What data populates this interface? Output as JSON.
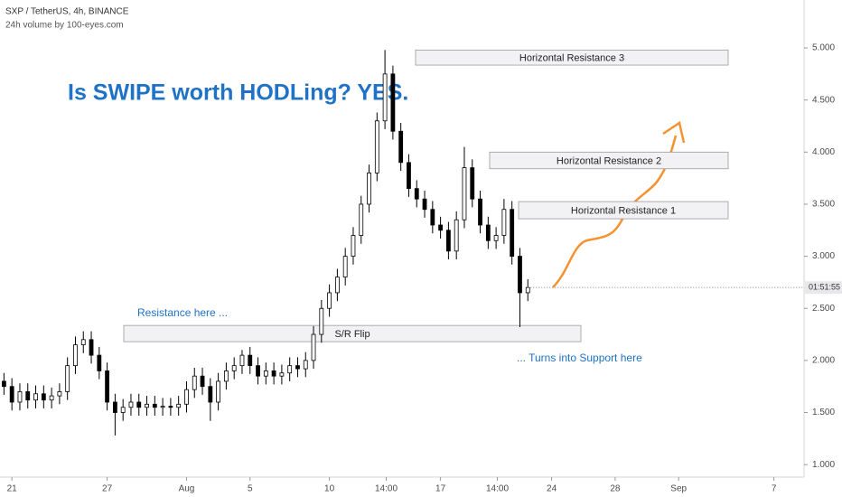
{
  "chart_data": {
    "type": "candlestick",
    "title": "SXP / TetherUS, 4h, BINANCE",
    "subtitle": "24h volume by 100-eyes.com",
    "headline": "Is SWIPE worth HODLing? YES.",
    "countdown": "01:51:55",
    "x": [
      -0.5,
      0,
      0.5,
      1,
      1.5,
      2,
      2.5,
      3,
      3.5,
      4,
      4.5,
      5,
      5.5,
      6,
      6.5,
      7,
      7.5,
      8,
      8.5,
      9,
      9.5,
      10,
      10.5,
      11,
      11.5,
      12,
      12.5,
      13,
      13.5,
      14,
      14.5,
      15,
      15.5,
      16,
      16.5,
      17,
      17.5,
      18,
      18.5,
      19,
      19.5,
      20,
      20.5,
      21,
      21.5,
      22,
      22.5,
      23,
      23.5,
      24,
      24.5,
      25,
      25.5,
      26,
      26.5,
      27,
      27.5,
      28,
      28.5,
      29,
      29.5,
      30,
      30.5,
      31,
      31.5,
      32,
      32.5
    ],
    "open": [
      1.8,
      1.75,
      1.6,
      1.7,
      1.62,
      1.68,
      1.62,
      1.66,
      1.7,
      1.95,
      2.15,
      2.2,
      2.05,
      1.9,
      1.6,
      1.5,
      1.55,
      1.6,
      1.55,
      1.58,
      1.55,
      1.56,
      1.55,
      1.58,
      1.72,
      1.85,
      1.75,
      1.6,
      1.8,
      1.9,
      1.95,
      2.05,
      1.95,
      1.85,
      1.9,
      1.85,
      1.88,
      1.95,
      1.92,
      2.0,
      2.25,
      2.5,
      2.65,
      2.8,
      3.0,
      3.2,
      3.5,
      3.8,
      4.3,
      4.75,
      4.2,
      3.9,
      3.65,
      3.55,
      3.45,
      3.3,
      3.25,
      3.05,
      3.35,
      3.85,
      3.55,
      3.3,
      3.15,
      3.2,
      3.45,
      3.0,
      2.65
    ],
    "high": [
      1.88,
      1.83,
      1.78,
      1.78,
      1.76,
      1.76,
      1.74,
      1.78,
      2.03,
      2.23,
      2.28,
      2.28,
      2.13,
      1.98,
      1.68,
      1.63,
      1.68,
      1.68,
      1.66,
      1.66,
      1.64,
      1.64,
      1.66,
      1.8,
      1.93,
      1.93,
      1.83,
      1.88,
      1.98,
      2.03,
      2.1,
      2.13,
      2.03,
      1.98,
      1.98,
      1.96,
      2.03,
      2.03,
      2.08,
      2.33,
      2.58,
      2.73,
      2.88,
      3.08,
      3.28,
      3.58,
      3.88,
      4.38,
      4.98,
      4.83,
      4.28,
      3.98,
      3.73,
      3.63,
      3.53,
      3.38,
      3.33,
      3.43,
      4.05,
      3.93,
      3.63,
      3.38,
      3.28,
      3.55,
      3.53,
      3.08,
      2.78
    ],
    "low": [
      1.67,
      1.52,
      1.52,
      1.54,
      1.54,
      1.54,
      1.54,
      1.58,
      1.62,
      1.87,
      2.07,
      1.97,
      1.82,
      1.52,
      1.28,
      1.42,
      1.47,
      1.47,
      1.47,
      1.47,
      1.47,
      1.47,
      1.47,
      1.5,
      1.64,
      1.67,
      1.42,
      1.52,
      1.72,
      1.82,
      1.87,
      1.87,
      1.77,
      1.77,
      1.77,
      1.77,
      1.8,
      1.84,
      1.84,
      1.92,
      2.17,
      2.42,
      2.57,
      2.72,
      2.92,
      3.12,
      3.42,
      3.72,
      4.22,
      4.12,
      3.82,
      3.57,
      3.47,
      3.37,
      3.22,
      3.17,
      2.97,
      2.97,
      3.27,
      3.47,
      3.22,
      3.07,
      3.07,
      3.12,
      2.92,
      2.32,
      2.57
    ],
    "close": [
      1.75,
      1.6,
      1.7,
      1.62,
      1.68,
      1.62,
      1.66,
      1.7,
      1.95,
      2.15,
      2.2,
      2.05,
      1.9,
      1.6,
      1.5,
      1.55,
      1.6,
      1.55,
      1.58,
      1.55,
      1.56,
      1.55,
      1.58,
      1.72,
      1.85,
      1.75,
      1.6,
      1.8,
      1.9,
      1.95,
      2.05,
      1.95,
      1.85,
      1.9,
      1.85,
      1.88,
      1.95,
      1.92,
      2.0,
      2.25,
      2.5,
      2.65,
      2.8,
      3.0,
      3.2,
      3.5,
      3.8,
      4.3,
      4.75,
      4.2,
      3.9,
      3.65,
      3.55,
      3.45,
      3.3,
      3.25,
      3.05,
      3.35,
      3.85,
      3.55,
      3.3,
      3.15,
      3.2,
      3.45,
      3.0,
      2.65,
      2.7
    ],
    "up_color": "#ffffff",
    "down_color": "#000000",
    "xlim": [
      -0.75,
      49.9
    ],
    "xticks": [
      {
        "value": 0,
        "label": "21"
      },
      {
        "value": 6,
        "label": "27"
      },
      {
        "value": 11,
        "label": "Aug"
      },
      {
        "value": 15,
        "label": "5"
      },
      {
        "value": 20,
        "label": "10"
      },
      {
        "value": 23.58,
        "label": "14:00"
      },
      {
        "value": 27,
        "label": "17"
      },
      {
        "value": 30.58,
        "label": "14:00"
      },
      {
        "value": 34,
        "label": "24"
      },
      {
        "value": 38,
        "label": "28"
      },
      {
        "value": 42,
        "label": "Sep"
      },
      {
        "value": 48,
        "label": "7"
      }
    ],
    "ylim": [
      0.88,
      5.46
    ],
    "yticks": [
      {
        "value": 1,
        "label": "1.000"
      },
      {
        "value": 1.5,
        "label": "1.500"
      },
      {
        "value": 2,
        "label": "2.000"
      },
      {
        "value": 2.5,
        "label": "2.500"
      },
      {
        "value": 3,
        "label": "3.000"
      },
      {
        "value": 3.5,
        "label": "3.500"
      },
      {
        "value": 4,
        "label": "4.000"
      },
      {
        "value": 4.5,
        "label": "4.500"
      },
      {
        "value": 5,
        "label": "5.000"
      }
    ],
    "zones": [
      {
        "label": "Horizontal Resistance 3",
        "range": [
          4.835,
          4.98
        ]
      },
      {
        "label": "Horizontal Resistance 2",
        "range": [
          3.84,
          4.0
        ]
      },
      {
        "label": "Horizontal Resistance 1",
        "range": [
          3.36,
          3.525
        ]
      },
      {
        "label": "S/R Flip",
        "range": [
          2.18,
          2.336
        ]
      }
    ],
    "notes": [
      "Resistance here ...",
      "... Turns into Support here"
    ]
  }
}
